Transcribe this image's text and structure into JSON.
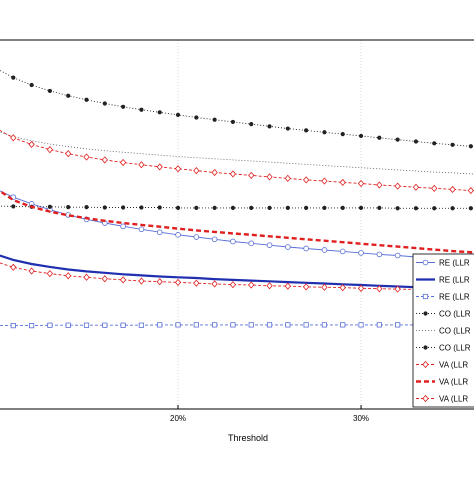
{
  "chart_data": {
    "type": "line",
    "title": "",
    "xlabel": "Threshold",
    "ylabel": "",
    "x_tick_labels": [
      {
        "value": 0.2,
        "label": "20%"
      },
      {
        "value": 0.3,
        "label": "30%"
      }
    ],
    "xlim": [
      0.1,
      0.365
    ],
    "ylim": [
      0,
      1
    ],
    "grid": true,
    "legend_placement": "bottom-right",
    "series": [
      {
        "name": "RE (LLR",
        "color": "#5a6fd6",
        "line_style": "solid-thin",
        "marker": "circle",
        "x": [
          0.1,
          0.11,
          0.12,
          0.13,
          0.14,
          0.15,
          0.16,
          0.17,
          0.18,
          0.19,
          0.2,
          0.21,
          0.22,
          0.23,
          0.24,
          0.25,
          0.26,
          0.27,
          0.28,
          0.29,
          0.3,
          0.31,
          0.32,
          0.33,
          0.34,
          0.35,
          0.36,
          0.365
        ],
        "y": [
          0.597,
          0.574,
          0.556,
          0.54,
          0.526,
          0.514,
          0.504,
          0.495,
          0.487,
          0.479,
          0.472,
          0.466,
          0.46,
          0.454,
          0.449,
          0.444,
          0.439,
          0.435,
          0.431,
          0.427,
          0.423,
          0.419,
          0.416,
          0.412,
          0.409,
          0.406,
          0.403,
          0.402
        ]
      },
      {
        "name": "RE (LLR",
        "color": "#1f2fb0",
        "line_style": "solid-thick",
        "marker": "none",
        "x": [
          0.1,
          0.11,
          0.12,
          0.13,
          0.14,
          0.15,
          0.16,
          0.17,
          0.18,
          0.19,
          0.2,
          0.21,
          0.22,
          0.23,
          0.24,
          0.25,
          0.26,
          0.27,
          0.28,
          0.29,
          0.3,
          0.31,
          0.32,
          0.33,
          0.34,
          0.35,
          0.36,
          0.365
        ],
        "y": [
          0.42,
          0.404,
          0.393,
          0.385,
          0.378,
          0.373,
          0.369,
          0.365,
          0.362,
          0.359,
          0.357,
          0.355,
          0.352,
          0.35,
          0.348,
          0.346,
          0.344,
          0.342,
          0.34,
          0.338,
          0.336,
          0.334,
          0.332,
          0.33,
          0.328,
          0.326,
          0.324,
          0.323
        ]
      },
      {
        "name": "RE (LLR",
        "color": "#5a6fd6",
        "line_style": "dashed-thin",
        "marker": "square",
        "x": [
          0.1,
          0.11,
          0.12,
          0.13,
          0.14,
          0.15,
          0.16,
          0.17,
          0.18,
          0.19,
          0.2,
          0.21,
          0.22,
          0.23,
          0.24,
          0.25,
          0.26,
          0.27,
          0.28,
          0.29,
          0.3,
          0.31,
          0.32,
          0.33,
          0.34,
          0.35,
          0.36,
          0.365
        ],
        "y": [
          0.226,
          0.226,
          0.226,
          0.227,
          0.227,
          0.227,
          0.227,
          0.227,
          0.227,
          0.228,
          0.228,
          0.228,
          0.228,
          0.228,
          0.228,
          0.228,
          0.228,
          0.228,
          0.228,
          0.228,
          0.228,
          0.228,
          0.228,
          0.228,
          0.228,
          0.228,
          0.228,
          0.228
        ]
      },
      {
        "name": "CO (LLR",
        "color": "#222222",
        "line_style": "dotted",
        "marker": "star",
        "x": [
          0.1,
          0.11,
          0.12,
          0.13,
          0.14,
          0.15,
          0.16,
          0.17,
          0.18,
          0.19,
          0.2,
          0.21,
          0.22,
          0.23,
          0.24,
          0.25,
          0.26,
          0.27,
          0.28,
          0.29,
          0.3,
          0.31,
          0.32,
          0.33,
          0.34,
          0.35,
          0.36,
          0.365
        ],
        "y": [
          0.925,
          0.898,
          0.878,
          0.862,
          0.849,
          0.838,
          0.828,
          0.819,
          0.811,
          0.804,
          0.797,
          0.79,
          0.784,
          0.778,
          0.772,
          0.766,
          0.76,
          0.755,
          0.75,
          0.745,
          0.74,
          0.735,
          0.73,
          0.725,
          0.72,
          0.716,
          0.712,
          0.71
        ]
      },
      {
        "name": "CO (LLR",
        "color": "#555555",
        "line_style": "dotted-thin",
        "marker": "none",
        "x": [
          0.1,
          0.11,
          0.12,
          0.13,
          0.14,
          0.15,
          0.16,
          0.17,
          0.18,
          0.19,
          0.2,
          0.21,
          0.22,
          0.23,
          0.24,
          0.25,
          0.26,
          0.27,
          0.28,
          0.29,
          0.3,
          0.31,
          0.32,
          0.33,
          0.34,
          0.35,
          0.36,
          0.365
        ],
        "y": [
          0.755,
          0.738,
          0.727,
          0.718,
          0.711,
          0.705,
          0.7,
          0.696,
          0.692,
          0.688,
          0.684,
          0.681,
          0.678,
          0.675,
          0.672,
          0.669,
          0.666,
          0.663,
          0.66,
          0.657,
          0.654,
          0.651,
          0.648,
          0.645,
          0.642,
          0.64,
          0.637,
          0.636
        ]
      },
      {
        "name": "CO (LLR",
        "color": "#222222",
        "line_style": "dotted",
        "marker": "star",
        "x": [
          0.1,
          0.11,
          0.12,
          0.13,
          0.14,
          0.15,
          0.16,
          0.17,
          0.18,
          0.19,
          0.2,
          0.21,
          0.22,
          0.23,
          0.24,
          0.25,
          0.26,
          0.27,
          0.28,
          0.29,
          0.3,
          0.31,
          0.32,
          0.33,
          0.34,
          0.35,
          0.36,
          0.365
        ],
        "y": [
          0.55,
          0.549,
          0.548,
          0.548,
          0.547,
          0.547,
          0.546,
          0.546,
          0.546,
          0.546,
          0.545,
          0.545,
          0.545,
          0.545,
          0.545,
          0.545,
          0.545,
          0.545,
          0.545,
          0.545,
          0.545,
          0.545,
          0.544,
          0.544,
          0.544,
          0.544,
          0.544,
          0.544
        ]
      },
      {
        "name": "VA (LLR",
        "color": "#e02020",
        "line_style": "dashed-thin",
        "marker": "diamond",
        "x": [
          0.1,
          0.11,
          0.12,
          0.13,
          0.14,
          0.15,
          0.16,
          0.17,
          0.18,
          0.19,
          0.2,
          0.21,
          0.22,
          0.23,
          0.24,
          0.25,
          0.26,
          0.27,
          0.28,
          0.29,
          0.3,
          0.31,
          0.32,
          0.33,
          0.34,
          0.35,
          0.36,
          0.365
        ],
        "y": [
          0.762,
          0.735,
          0.717,
          0.703,
          0.692,
          0.683,
          0.675,
          0.668,
          0.662,
          0.656,
          0.651,
          0.646,
          0.641,
          0.637,
          0.633,
          0.629,
          0.625,
          0.621,
          0.618,
          0.614,
          0.611,
          0.607,
          0.604,
          0.601,
          0.598,
          0.595,
          0.592,
          0.591
        ]
      },
      {
        "name": "VA (LLR",
        "color": "#e02020",
        "line_style": "dashed-thick",
        "marker": "none",
        "x": [
          0.1,
          0.11,
          0.12,
          0.13,
          0.14,
          0.15,
          0.16,
          0.17,
          0.18,
          0.19,
          0.2,
          0.21,
          0.22,
          0.23,
          0.24,
          0.25,
          0.26,
          0.27,
          0.28,
          0.29,
          0.3,
          0.31,
          0.32,
          0.33,
          0.34,
          0.35,
          0.36,
          0.365
        ],
        "y": [
          0.6,
          0.566,
          0.548,
          0.535,
          0.525,
          0.517,
          0.51,
          0.504,
          0.499,
          0.494,
          0.489,
          0.484,
          0.48,
          0.476,
          0.472,
          0.468,
          0.464,
          0.46,
          0.456,
          0.452,
          0.448,
          0.444,
          0.44,
          0.436,
          0.432,
          0.428,
          0.425,
          0.423
        ]
      },
      {
        "name": "VA (LLR",
        "color": "#e02020",
        "line_style": "dashed-thin",
        "marker": "diamond",
        "x": [
          0.1,
          0.11,
          0.12,
          0.13,
          0.14,
          0.15,
          0.16,
          0.17,
          0.18,
          0.19,
          0.2,
          0.21,
          0.22,
          0.23,
          0.24,
          0.25,
          0.26,
          0.27,
          0.28,
          0.29,
          0.3,
          0.31,
          0.32,
          0.33,
          0.34,
          0.35,
          0.36,
          0.365
        ],
        "y": [
          0.4,
          0.384,
          0.374,
          0.367,
          0.361,
          0.357,
          0.353,
          0.35,
          0.347,
          0.345,
          0.343,
          0.341,
          0.339,
          0.337,
          0.336,
          0.334,
          0.333,
          0.331,
          0.33,
          0.329,
          0.327,
          0.326,
          0.325,
          0.324,
          0.323,
          0.322,
          0.321,
          0.32
        ]
      }
    ]
  }
}
